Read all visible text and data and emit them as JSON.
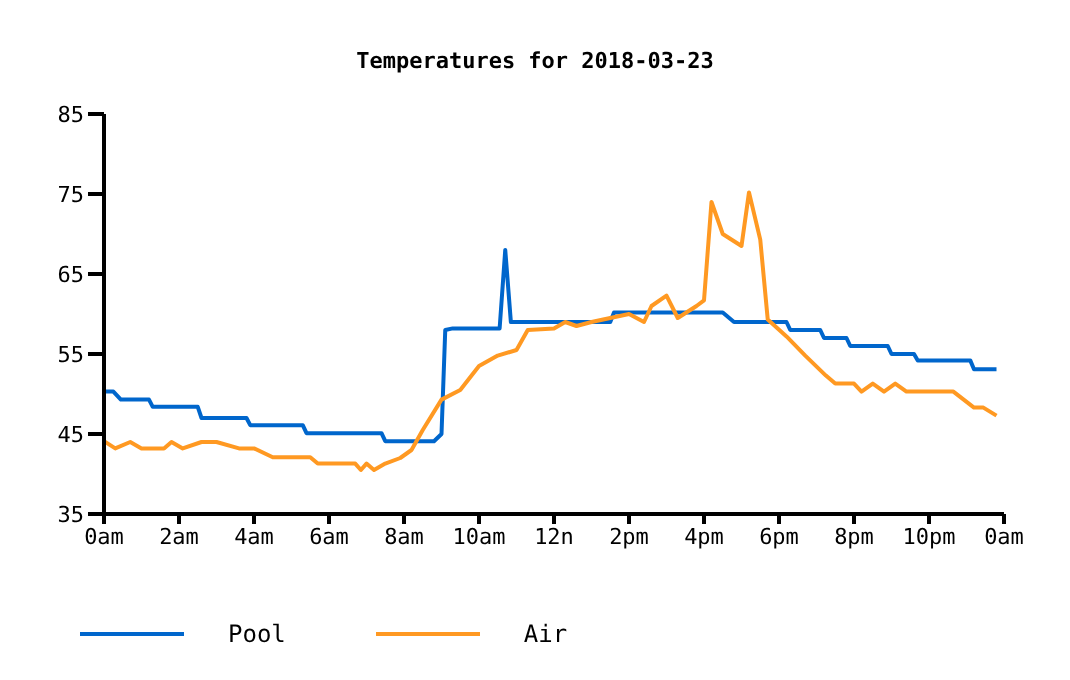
{
  "chart_data": {
    "type": "line",
    "title": "Temperatures for 2018-03-23",
    "xlim": [
      "2018-03-23T00:00",
      "2018-03-24T00:00"
    ],
    "xticks": [
      {
        "value": "2018-03-23T00:00",
        "label": "0am"
      },
      {
        "value": "2018-03-23T02:00",
        "label": "2am"
      },
      {
        "value": "2018-03-23T04:00",
        "label": "4am"
      },
      {
        "value": "2018-03-23T06:00",
        "label": "6am"
      },
      {
        "value": "2018-03-23T08:00",
        "label": "8am"
      },
      {
        "value": "2018-03-23T10:00",
        "label": "10am"
      },
      {
        "value": "2018-03-23T12:00",
        "label": "12n"
      },
      {
        "value": "2018-03-23T14:00",
        "label": "2pm"
      },
      {
        "value": "2018-03-23T16:00",
        "label": "4pm"
      },
      {
        "value": "2018-03-23T18:00",
        "label": "6pm"
      },
      {
        "value": "2018-03-23T20:00",
        "label": "8pm"
      },
      {
        "value": "2018-03-23T22:00",
        "label": "10pm"
      },
      {
        "value": "2018-03-24T00:00",
        "label": "0am"
      }
    ],
    "ylim": [
      35,
      85
    ],
    "yticks": [
      35,
      45,
      55,
      65,
      75,
      85
    ],
    "grid": false,
    "legend": "bottom left",
    "marker": "none",
    "line_style": "solid",
    "series": [
      {
        "name": "Pool",
        "color": "#0066cc",
        "x": [
          "2018-03-23T00:00",
          "2018-03-23T00:15",
          "2018-03-23T00:27",
          "2018-03-23T01:12",
          "2018-03-23T01:18",
          "2018-03-23T02:30",
          "2018-03-23T02:36",
          "2018-03-23T03:48",
          "2018-03-23T03:54",
          "2018-03-23T05:18",
          "2018-03-23T05:24",
          "2018-03-23T07:24",
          "2018-03-23T07:30",
          "2018-03-23T08:48",
          "2018-03-23T09:00",
          "2018-03-23T09:06",
          "2018-03-23T09:18",
          "2018-03-23T10:33",
          "2018-03-23T10:42",
          "2018-03-23T10:51",
          "2018-03-23T11:00",
          "2018-03-23T13:30",
          "2018-03-23T13:36",
          "2018-03-23T16:30",
          "2018-03-23T16:48",
          "2018-03-23T18:12",
          "2018-03-23T18:18",
          "2018-03-23T19:06",
          "2018-03-23T19:12",
          "2018-03-23T19:48",
          "2018-03-23T19:54",
          "2018-03-23T20:54",
          "2018-03-23T21:00",
          "2018-03-23T21:36",
          "2018-03-23T21:42",
          "2018-03-23T23:06",
          "2018-03-23T23:12",
          "2018-03-23T23:48"
        ],
        "values": [
          50.3,
          50.3,
          49.3,
          49.3,
          48.4,
          48.4,
          47,
          47,
          46.1,
          46.1,
          45.1,
          45.1,
          44.1,
          44.1,
          45,
          58,
          58.2,
          58.2,
          68,
          59,
          59,
          59,
          60.2,
          60.2,
          59,
          59,
          58,
          58,
          57,
          57,
          56,
          56,
          55,
          55,
          54.2,
          54.2,
          53.1,
          53.1
        ]
      },
      {
        "name": "Air",
        "color": "#ff9922",
        "x": [
          "2018-03-23T00:00",
          "2018-03-23T00:18",
          "2018-03-23T00:42",
          "2018-03-23T01:00",
          "2018-03-23T01:36",
          "2018-03-23T01:48",
          "2018-03-23T02:06",
          "2018-03-23T02:36",
          "2018-03-23T03:00",
          "2018-03-23T03:36",
          "2018-03-23T04:00",
          "2018-03-23T04:30",
          "2018-03-23T05:30",
          "2018-03-23T05:42",
          "2018-03-23T06:42",
          "2018-03-23T06:51",
          "2018-03-23T07:00",
          "2018-03-23T07:12",
          "2018-03-23T07:30",
          "2018-03-23T07:54",
          "2018-03-23T08:12",
          "2018-03-23T08:30",
          "2018-03-23T09:00",
          "2018-03-23T09:30",
          "2018-03-23T10:00",
          "2018-03-23T10:30",
          "2018-03-23T11:00",
          "2018-03-23T11:18",
          "2018-03-23T12:00",
          "2018-03-23T12:18",
          "2018-03-23T12:36",
          "2018-03-23T13:00",
          "2018-03-23T14:00",
          "2018-03-23T14:24",
          "2018-03-23T14:36",
          "2018-03-23T15:00",
          "2018-03-23T15:18",
          "2018-03-23T15:48",
          "2018-03-23T16:00",
          "2018-03-23T16:12",
          "2018-03-23T16:30",
          "2018-03-23T17:00",
          "2018-03-23T17:12",
          "2018-03-23T17:30",
          "2018-03-23T17:42",
          "2018-03-23T18:12",
          "2018-03-23T18:42",
          "2018-03-23T19:15",
          "2018-03-23T19:30",
          "2018-03-23T20:00",
          "2018-03-23T20:12",
          "2018-03-23T20:30",
          "2018-03-23T20:48",
          "2018-03-23T21:06",
          "2018-03-23T21:24",
          "2018-03-23T22:39",
          "2018-03-23T23:12",
          "2018-03-23T23:27",
          "2018-03-23T23:48"
        ],
        "values": [
          44.1,
          43.2,
          44,
          43.2,
          43.2,
          44,
          43.2,
          44,
          44,
          43.2,
          43.2,
          42.1,
          42.1,
          41.3,
          41.3,
          40.5,
          41.3,
          40.5,
          41.3,
          42,
          43,
          45.5,
          49.3,
          50.5,
          53.5,
          54.8,
          55.5,
          58,
          58.2,
          59,
          58.5,
          59,
          60,
          59,
          61,
          62.3,
          59.5,
          61,
          61.7,
          74,
          70,
          68.5,
          75.2,
          69.3,
          59.3,
          57.2,
          54.8,
          52.3,
          51.3,
          51.3,
          50.3,
          51.3,
          50.3,
          51.3,
          50.3,
          50.3,
          48.3,
          48.3,
          47.3
        ]
      }
    ]
  }
}
